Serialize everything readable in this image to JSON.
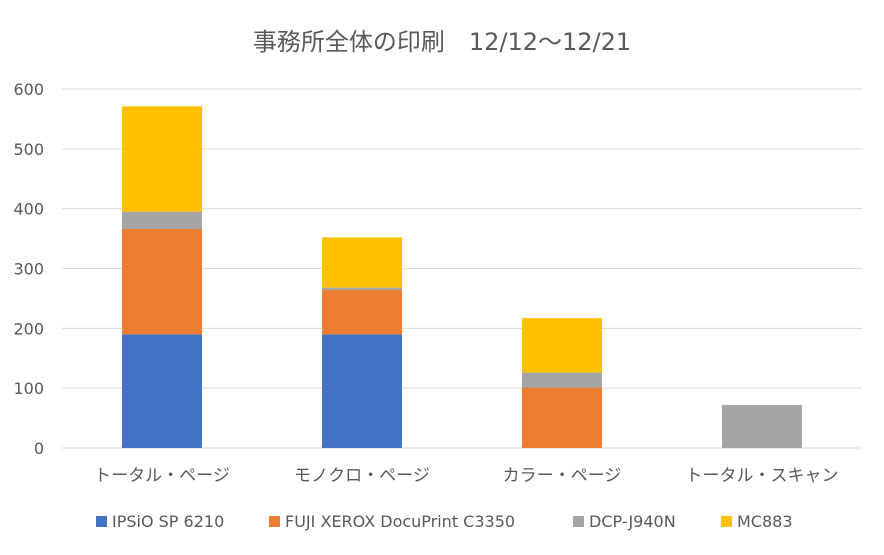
{
  "chart_data": {
    "type": "bar",
    "stacked": true,
    "title": "事務所全体の印刷　12/12～12/21",
    "xlabel": "",
    "ylabel": "",
    "ylim": [
      0,
      600
    ],
    "yticks": [
      0,
      100,
      200,
      300,
      400,
      500,
      600
    ],
    "grid": true,
    "legend_position": "bottom",
    "categories": [
      "トータル・ページ",
      "モノクロ・ページ",
      "カラー・ページ",
      "トータル・スキャン"
    ],
    "series": [
      {
        "name": "IPSiO SP 6210",
        "color": "#4472C4",
        "values": [
          190,
          190,
          0,
          0
        ]
      },
      {
        "name": "FUJI XEROX DocuPrint C3350",
        "color": "#ED7D31",
        "values": [
          176,
          74,
          101,
          0
        ]
      },
      {
        "name": "DCP-J940N",
        "color": "#A5A5A5",
        "values": [
          29,
          4,
          25,
          72
        ]
      },
      {
        "name": "MC883",
        "color": "#FFC000",
        "values": [
          176,
          84,
          91,
          0
        ]
      }
    ]
  }
}
